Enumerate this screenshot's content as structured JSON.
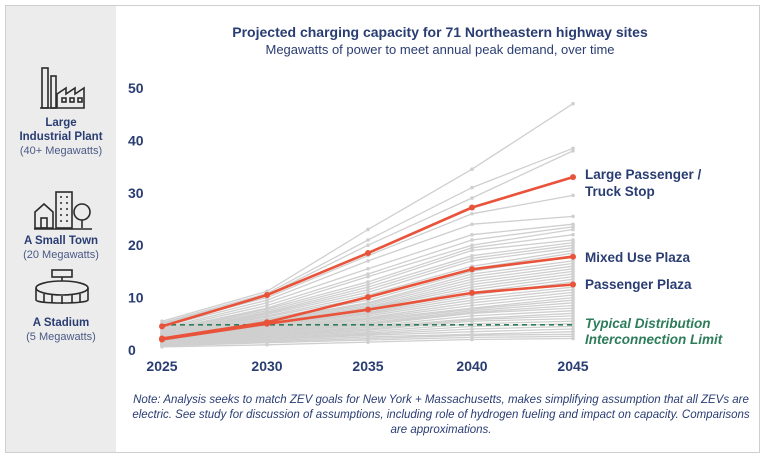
{
  "chart_data": {
    "type": "line",
    "title": "Projected charging capacity for 71 Northeastern highway sites",
    "subtitle": "Megawatts of power to meet annual peak demand, over time",
    "xlabel": "",
    "ylabel": "",
    "x": [
      2025,
      2030,
      2035,
      2040,
      2045
    ],
    "ylim": [
      0,
      50
    ],
    "yticks": [
      0,
      10,
      20,
      30,
      40,
      50
    ],
    "grid": false,
    "highlighted_series": [
      {
        "name": "Large Passenger / Truck Stop",
        "values": [
          4.5,
          10.5,
          18.5,
          27.2,
          33.0
        ]
      },
      {
        "name": "Mixed Use Plaza",
        "values": [
          2.2,
          5.3,
          10.1,
          15.4,
          17.8
        ]
      },
      {
        "name": "Passenger Plaza",
        "values": [
          2.0,
          5.0,
          7.7,
          10.9,
          12.5
        ]
      }
    ],
    "background_series": [
      [
        5.5,
        11.2,
        23.0,
        34.5,
        47.0
      ],
      [
        5.2,
        10.8,
        21.0,
        31.0,
        38.5
      ],
      [
        5.0,
        10.5,
        20.0,
        29.0,
        38.0
      ],
      [
        4.8,
        10.0,
        18.0,
        26.0,
        29.5
      ],
      [
        4.5,
        9.5,
        17.0,
        24.0,
        25.5
      ],
      [
        4.2,
        9.0,
        15.5,
        22.0,
        24.0
      ],
      [
        4.0,
        8.5,
        14.5,
        21.0,
        23.5
      ],
      [
        3.8,
        8.0,
        14.0,
        20.0,
        23.0
      ],
      [
        3.6,
        7.8,
        13.0,
        19.5,
        22.0
      ],
      [
        3.5,
        7.5,
        12.5,
        19.0,
        21.0
      ],
      [
        3.3,
        7.2,
        12.0,
        18.0,
        20.5
      ],
      [
        3.2,
        7.0,
        11.5,
        17.5,
        20.0
      ],
      [
        3.0,
        6.8,
        11.0,
        17.0,
        19.5
      ],
      [
        3.0,
        6.5,
        10.5,
        16.0,
        19.0
      ],
      [
        2.9,
        6.3,
        10.0,
        15.5,
        18.5
      ],
      [
        2.8,
        6.0,
        9.5,
        15.0,
        18.0
      ],
      [
        2.7,
        5.8,
        9.0,
        14.5,
        17.0
      ],
      [
        2.6,
        5.6,
        8.8,
        14.0,
        16.5
      ],
      [
        2.5,
        5.5,
        8.5,
        13.5,
        16.0
      ],
      [
        2.4,
        5.3,
        8.2,
        13.0,
        15.5
      ],
      [
        2.3,
        5.1,
        8.0,
        12.5,
        15.0
      ],
      [
        2.2,
        5.0,
        7.8,
        12.0,
        14.5
      ],
      [
        2.1,
        4.9,
        7.5,
        11.5,
        14.0
      ],
      [
        2.0,
        4.8,
        7.2,
        11.0,
        13.5
      ],
      [
        2.0,
        4.6,
        7.0,
        10.5,
        13.0
      ],
      [
        1.9,
        4.5,
        6.8,
        10.0,
        12.0
      ],
      [
        1.8,
        4.3,
        6.5,
        9.5,
        11.5
      ],
      [
        1.8,
        4.2,
        6.2,
        9.0,
        11.0
      ],
      [
        1.7,
        4.0,
        6.0,
        8.5,
        10.5
      ],
      [
        1.6,
        3.8,
        5.8,
        8.0,
        10.0
      ],
      [
        1.6,
        3.6,
        5.5,
        7.8,
        9.5
      ],
      [
        1.5,
        3.5,
        5.2,
        7.5,
        9.0
      ],
      [
        1.5,
        3.3,
        5.0,
        7.2,
        8.5
      ],
      [
        1.4,
        3.2,
        4.8,
        7.0,
        8.0
      ],
      [
        1.4,
        3.0,
        4.5,
        6.5,
        7.5
      ],
      [
        1.3,
        2.9,
        4.3,
        6.0,
        7.0
      ],
      [
        1.3,
        2.8,
        4.0,
        5.8,
        6.5
      ],
      [
        1.2,
        2.6,
        3.8,
        5.5,
        6.0
      ],
      [
        1.2,
        2.5,
        3.5,
        5.0,
        5.5
      ],
      [
        1.1,
        2.3,
        3.2,
        4.5,
        5.0
      ],
      [
        1.1,
        2.2,
        3.0,
        4.0,
        4.5
      ],
      [
        1.0,
        2.0,
        2.8,
        3.5,
        4.0
      ],
      [
        1.0,
        1.8,
        2.5,
        3.0,
        3.5
      ],
      [
        0.9,
        1.6,
        2.2,
        2.8,
        3.0
      ],
      [
        0.8,
        1.4,
        1.9,
        2.4,
        2.6
      ],
      [
        0.6,
        1.0,
        1.5,
        2.0,
        2.2
      ]
    ],
    "reference_line": {
      "label_line1": "Typical Distribution",
      "label_line2": "Interconnection Limit",
      "value": 4.8
    },
    "reference_scale": [
      {
        "label_line1": "Large",
        "label_line2": "Industrial Plant",
        "detail": "(40+ Megawatts)",
        "icon": "factory-icon"
      },
      {
        "label_line1": "A Small Town",
        "detail": "(20 Megawatts)",
        "icon": "small-town-icon"
      },
      {
        "label_line1": "A Stadium",
        "detail": "(5 Megawatts)",
        "icon": "stadium-icon"
      }
    ],
    "note": "Note: Analysis seeks to match ZEV goals for New York + Massachusetts, makes simplifying assumption that all ZEVs are electric. See study for discussion of assumptions, including role of hydrogen fueling and impact on capacity. Comparisons are approximations.",
    "colors": {
      "highlight": "#e8533a",
      "background": "#cfcfcf",
      "reference_line": "#2e7d5a",
      "text": "#2a3d73"
    }
  }
}
